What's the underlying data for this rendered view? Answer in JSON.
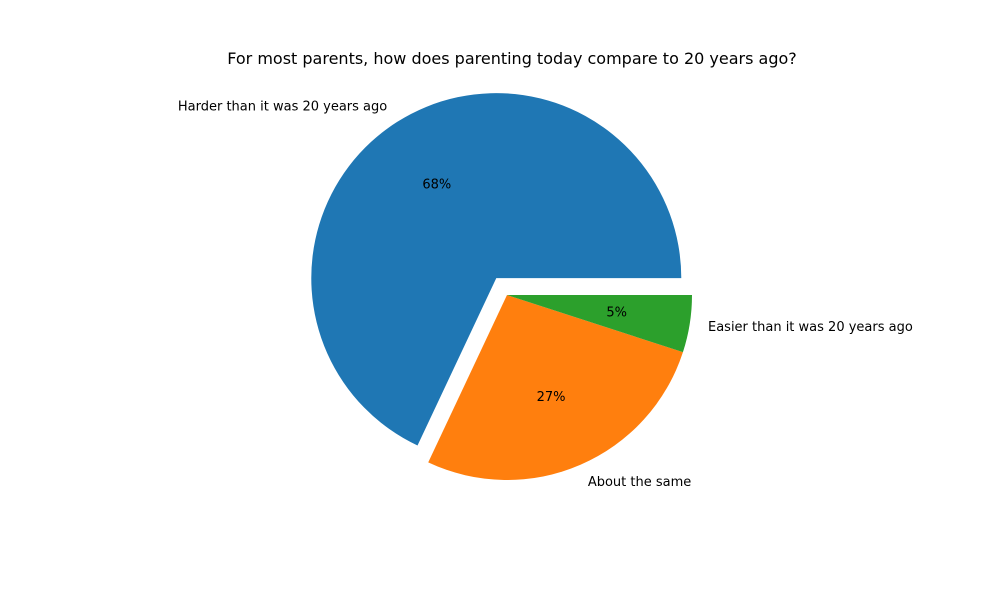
{
  "chart_data": {
    "type": "pie",
    "title": "For most parents, how does parenting today compare to 20 years ago?",
    "labels": [
      "Harder than it was 20 years ago",
      "About the same",
      "Easier than it was 20 years ago"
    ],
    "values": [
      68,
      27,
      5
    ],
    "value_labels": [
      "68%",
      "27%",
      "5%"
    ],
    "colors": [
      "#1f77b4",
      "#ff7f0e",
      "#2ca02c"
    ],
    "exploded": [
      true,
      false,
      false
    ],
    "start_angle_deg": 0,
    "direction": "counterclockwise"
  }
}
